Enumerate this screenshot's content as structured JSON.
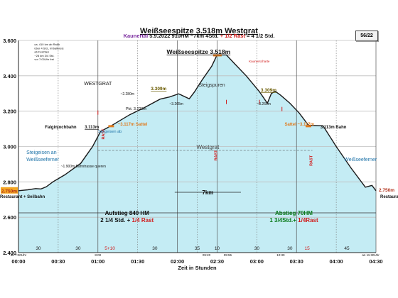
{
  "chart_data": {
    "type": "area",
    "title": "Weißseespitze 3.518m Westgrat",
    "subtitle": {
      "region": "Kaunertal",
      "date": "5.9.2022",
      "hm": "910HM",
      "distance": "~7km",
      "time_part1": "4Std.",
      "time_part2": "+ 1/2 Rast",
      "time_part3": "= 4 1/2 Std."
    },
    "page_badge": "56/22",
    "xlabel": "Zeit in Stunden",
    "ylabel": "",
    "xlim": [
      0,
      270
    ],
    "ylim": [
      2400,
      3600
    ],
    "grid": true,
    "x_ticks": [
      {
        "v": 0,
        "label": "00:00"
      },
      {
        "v": 30,
        "label": "00:30"
      },
      {
        "v": 60,
        "label": "01:00"
      },
      {
        "v": 90,
        "label": "01:30"
      },
      {
        "v": 120,
        "label": "02:00"
      },
      {
        "v": 150,
        "label": "02:30"
      },
      {
        "v": 180,
        "label": "03:00"
      },
      {
        "v": 210,
        "label": "03:30"
      },
      {
        "v": 240,
        "label": "04:00"
      },
      {
        "v": 270,
        "label": "04:30"
      }
    ],
    "y_ticks": [
      {
        "v": 2400,
        "label": "2.400"
      },
      {
        "v": 2600,
        "label": "2.600"
      },
      {
        "v": 2800,
        "label": "2.800"
      },
      {
        "v": 3000,
        "label": "3.000"
      },
      {
        "v": 3200,
        "label": "3.200"
      },
      {
        "v": 3400,
        "label": "3.400"
      },
      {
        "v": 3600,
        "label": "3.600"
      }
    ],
    "solid_vlines": [
      60,
      120,
      150,
      210,
      270
    ],
    "dotted_vlines": [
      0,
      30,
      90,
      135,
      180,
      240
    ],
    "series": [
      {
        "points": [
          [
            0,
            2750
          ],
          [
            7,
            2755
          ],
          [
            13,
            2762
          ],
          [
            17,
            2760
          ],
          [
            21,
            2772
          ],
          [
            26,
            2800
          ],
          [
            35,
            2840
          ],
          [
            47,
            2905
          ],
          [
            56,
            3000
          ],
          [
            62,
            3085
          ],
          [
            70,
            3117
          ],
          [
            84,
            3180
          ],
          [
            95,
            3220
          ],
          [
            107,
            3268
          ],
          [
            114,
            3280
          ],
          [
            121,
            3298
          ],
          [
            129,
            3270
          ],
          [
            133,
            3310
          ],
          [
            139,
            3380
          ],
          [
            146,
            3455
          ],
          [
            150,
            3518
          ],
          [
            157,
            3518
          ],
          [
            163,
            3470
          ],
          [
            172,
            3400
          ],
          [
            182,
            3310
          ],
          [
            188,
            3245
          ],
          [
            191,
            3300
          ],
          [
            194,
            3312
          ],
          [
            198,
            3290
          ],
          [
            205,
            3245
          ],
          [
            212,
            3190
          ],
          [
            219,
            3120
          ],
          [
            230,
            3117
          ],
          [
            240,
            3000
          ],
          [
            251,
            2880
          ],
          [
            262,
            2770
          ],
          [
            267,
            2780
          ],
          [
            270,
            2750
          ]
        ]
      }
    ],
    "segment_minutes": [
      {
        "v": 15,
        "label": "30"
      },
      {
        "v": 45,
        "label": "30"
      },
      {
        "v": 69,
        "label": "5+10"
      },
      {
        "v": 103,
        "label": "30"
      },
      {
        "v": 135,
        "label": "35"
      },
      {
        "v": 150,
        "label": "10"
      },
      {
        "v": 180,
        "label": "30"
      },
      {
        "v": 205,
        "label": "30"
      },
      {
        "v": 218,
        "label": "15"
      },
      {
        "v": 248,
        "label": "45"
      }
    ],
    "clock_marks": [
      {
        "v": 0,
        "label": "ab 7:00Uhr"
      },
      {
        "v": 60,
        "label": "8:00"
      },
      {
        "v": 142,
        "label": "09:20"
      },
      {
        "v": 158,
        "label": "09:55"
      },
      {
        "v": 198,
        "label": "10:30"
      },
      {
        "v": 266,
        "label": "an 11:30Uhr"
      }
    ],
    "rast_marks": [
      {
        "x": 65,
        "y": 3040
      },
      {
        "x": 150,
        "y": 2920
      },
      {
        "x": 222,
        "y": 2890
      }
    ],
    "annotations": {
      "summit": "Weißseespitze 3.518m",
      "summit_cross": "Kaunerscharte",
      "westgrat_top": "WESTGRAT",
      "steigspuren": "Steigspuren",
      "westgrat_mid": "Westgrat",
      "dist": "7km",
      "falginjochbahn": "Falginjochbahn",
      "falginjoch_alt": "3.113m",
      "steigeisen_ab": "Steigeisen ab",
      "sattel_left": "~3.117m Sattel",
      "sattel_right": "Sattel ~3.117m",
      "bahn_right": "3.113m Bahn",
      "pkt": "Pkt. 3.223m",
      "alt_2280": "~2.280m",
      "alt_3309_l": "3.309m",
      "alt_3309_r": "3.309m",
      "alt_3265_l": "~3.265m",
      "alt_3265_r": "~3.265m",
      "steigeisen_an_1": "Steigeisen an",
      "steigeisen_an_2": "Weißseeferner",
      "alt_1900": "~1.900m Bahntrasse queren",
      "weisseeferner_r": "Weißseeferner",
      "restaurant_l": "Restaurant + Seilbahn",
      "restaurant_r": "Restaurant",
      "start_alt": "2.750m",
      "end_alt": "2.750m",
      "aufstieg_1": "Aufstieg 840 HM",
      "aufstieg_2a": "2 1/4 Std. +",
      "aufstieg_2b": "1/4 Rast",
      "abstieg_1": "Abstieg 70HM",
      "abstieg_2a": "1 3/4Std.+",
      "abstieg_2b": "1/4Rast",
      "rast": "RAST",
      "note_1": "ca. 410 km ab Raith",
      "note_2": "über 4 Std., Imbaltkreis",
      "note_3": "ab Feichten",
      "note_4": "~28 km 3/4 Std.",
      "note_5": "vor 7:00Uhr frei"
    },
    "colors": {
      "fill": "#c4ecf4",
      "line": "#1a1a1a",
      "grid": "#bfbfbf",
      "orange": "#e07b1f",
      "red": "#d11a1a",
      "purple": "#7a2a9e",
      "green": "#0a7a1a",
      "blue_text": "#1e73a8",
      "start_box": "#f4a623"
    }
  }
}
